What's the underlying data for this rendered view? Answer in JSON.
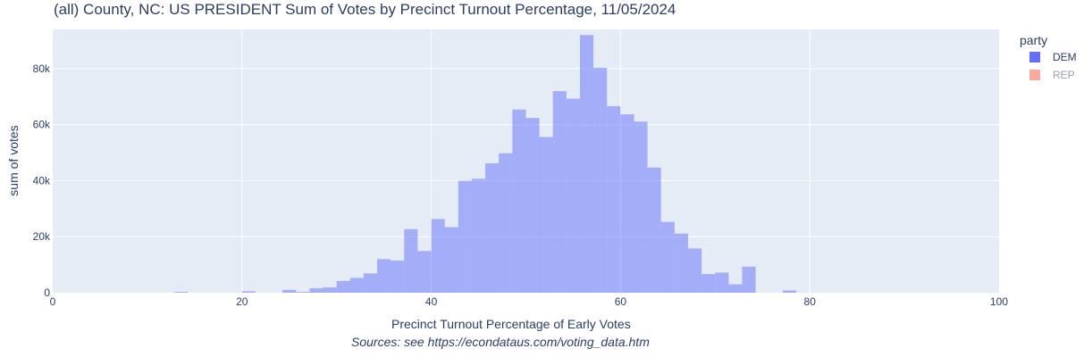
{
  "chart_data": {
    "type": "bar",
    "title": "(all) County, NC: US PRESIDENT Sum of Votes by Precinct Turnout Percentage, 11/05/2024",
    "xlabel": "Precinct Turnout Percentage of Early Votes",
    "ylabel": "sum of votes",
    "source_note": "Sources: see https://econdataus.com/voting_data.htm",
    "xlim": [
      0,
      100
    ],
    "ylim": [
      0,
      94000
    ],
    "bin_width": 1.428,
    "x_ticks": [
      0,
      20,
      40,
      60,
      80,
      100
    ],
    "x_tick_labels": [
      "0",
      "20",
      "40",
      "60",
      "80",
      "100"
    ],
    "y_ticks": [
      0,
      20000,
      40000,
      60000,
      80000
    ],
    "y_tick_labels": [
      "0",
      "20k",
      "40k",
      "60k",
      "80k"
    ],
    "grid": true,
    "legend": {
      "title": "party",
      "placement": "right",
      "items": [
        {
          "label": "DEM",
          "color": "#636efa",
          "visible": true
        },
        {
          "label": "REP",
          "color": "#ef553b",
          "visible": false
        }
      ]
    },
    "series": [
      {
        "name": "DEM",
        "color": "#636efa",
        "bins": [
          [
            12.85,
            300
          ],
          [
            20.0,
            500
          ],
          [
            24.28,
            1000
          ],
          [
            25.71,
            300
          ],
          [
            27.14,
            1600
          ],
          [
            28.57,
            1900
          ],
          [
            30.0,
            4200
          ],
          [
            31.42,
            5300
          ],
          [
            32.85,
            6900
          ],
          [
            34.28,
            12000
          ],
          [
            35.71,
            11500
          ],
          [
            37.14,
            22700
          ],
          [
            38.57,
            14900
          ],
          [
            40.0,
            26300
          ],
          [
            41.42,
            23400
          ],
          [
            42.85,
            40000
          ],
          [
            44.28,
            40700
          ],
          [
            45.71,
            46200
          ],
          [
            47.14,
            49800
          ],
          [
            48.57,
            65400
          ],
          [
            50.0,
            62400
          ],
          [
            51.42,
            55600
          ],
          [
            52.85,
            72000
          ],
          [
            54.28,
            69300
          ],
          [
            55.71,
            92000
          ],
          [
            57.14,
            80300
          ],
          [
            58.57,
            66600
          ],
          [
            60.0,
            63700
          ],
          [
            61.42,
            61100
          ],
          [
            62.85,
            44700
          ],
          [
            64.28,
            25300
          ],
          [
            65.71,
            21100
          ],
          [
            67.14,
            15800
          ],
          [
            68.57,
            6700
          ],
          [
            70.0,
            7200
          ],
          [
            71.42,
            3000
          ],
          [
            72.85,
            9300
          ],
          [
            77.14,
            800
          ]
        ]
      }
    ]
  }
}
